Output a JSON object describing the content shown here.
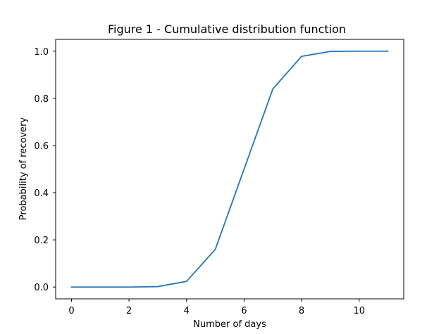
{
  "chart_data": {
    "type": "line",
    "title": "Figure 1 - Cumulative distribution function",
    "xlabel": "Number of days",
    "ylabel": "Probability of recovery",
    "xlim": [
      -0.55,
      11.55
    ],
    "ylim": [
      -0.05,
      1.05
    ],
    "xticks": [
      0,
      2,
      4,
      6,
      8,
      10
    ],
    "xtick_labels": [
      "0",
      "2",
      "4",
      "6",
      "8",
      "10"
    ],
    "yticks": [
      0.0,
      0.2,
      0.4,
      0.6,
      0.8,
      1.0
    ],
    "ytick_labels": [
      "0.0",
      "0.2",
      "0.4",
      "0.6",
      "0.8",
      "1.0"
    ],
    "grid": false,
    "series": [
      {
        "color": "#1f77b4",
        "x": [
          0,
          1,
          2,
          3,
          4,
          5,
          6,
          7,
          8,
          9,
          10,
          11
        ],
        "y": [
          0.0,
          0.0,
          0.0,
          0.002,
          0.024,
          0.16,
          0.5,
          0.84,
          0.978,
          0.999,
          1.0,
          1.0
        ]
      }
    ]
  }
}
